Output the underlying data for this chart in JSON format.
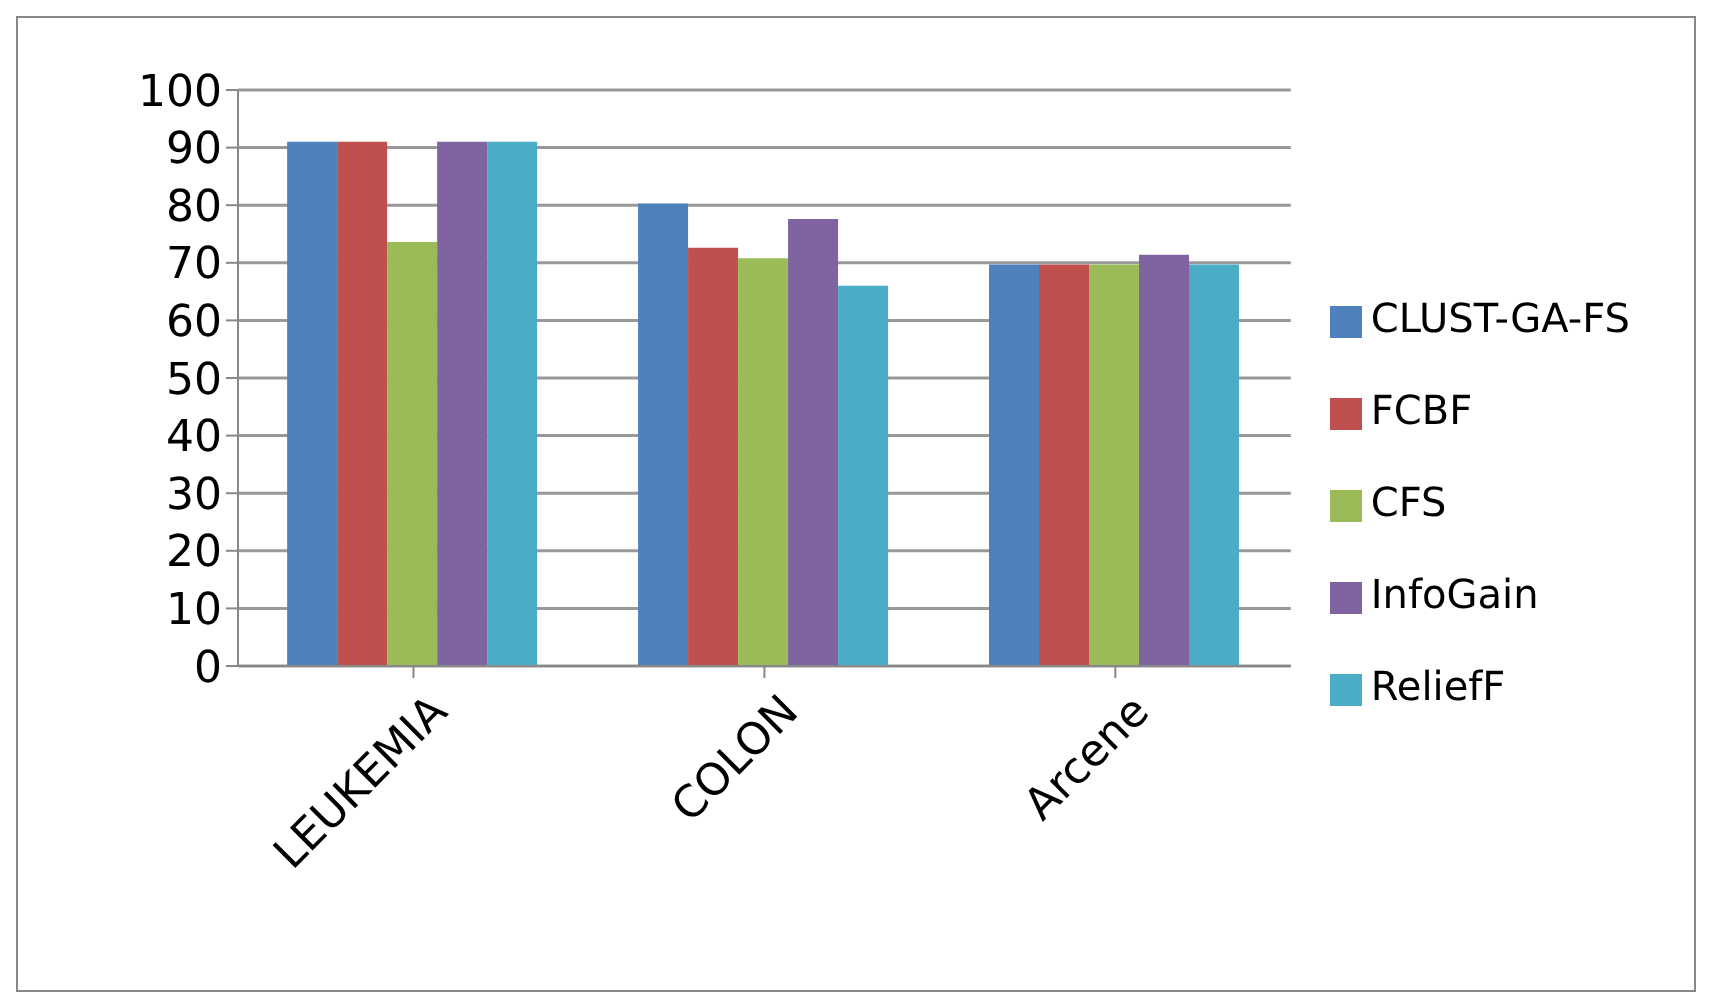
{
  "chart_data": {
    "type": "bar",
    "categories": [
      "LEUKEMIA",
      "COLON",
      "Arcene"
    ],
    "series": [
      {
        "name": "CLUST-GA-FS",
        "color": "#4f81bd",
        "values": [
          91,
          80.3,
          69.7
        ]
      },
      {
        "name": "FCBF",
        "color": "#c0504d",
        "values": [
          91,
          72.6,
          69.7
        ]
      },
      {
        "name": "CFS",
        "color": "#9bbb59",
        "values": [
          73.6,
          70.8,
          69.7
        ]
      },
      {
        "name": "InfoGain",
        "color": "#8064a2",
        "values": [
          91,
          77.6,
          71.4
        ]
      },
      {
        "name": "ReliefF",
        "color": "#4bacc6",
        "values": [
          91,
          66,
          69.7
        ]
      }
    ],
    "ylim": [
      0,
      100
    ],
    "yticks": [
      0,
      10,
      20,
      30,
      40,
      50,
      60,
      70,
      80,
      90,
      100
    ],
    "grid": "y",
    "legend": "right"
  }
}
